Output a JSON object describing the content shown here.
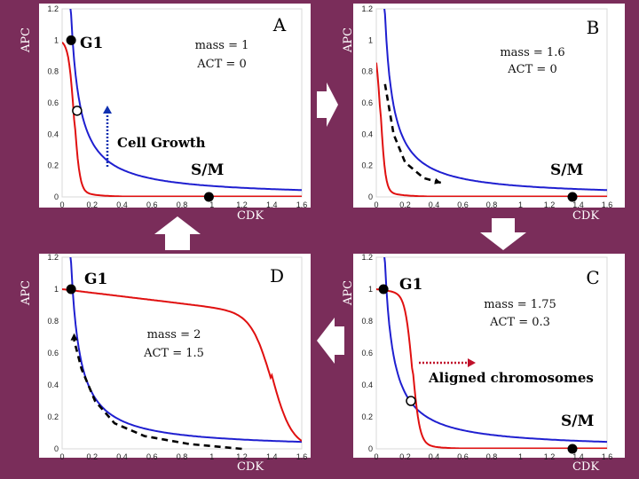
{
  "colors": {
    "background": "#7a2d5a",
    "panel_bg": "#ffffff",
    "blue_curve": "#1f1fd0",
    "red_curve": "#e01010",
    "arrow_white": "#ffffff",
    "cell_growth_arrow": "#1030b0",
    "aligned_arrow": "#c0102a",
    "dashed_path": "#000000"
  },
  "axis_labels": {
    "y": "APC",
    "x": "CDK"
  },
  "arrows": {
    "cell_growth": "Cell Growth",
    "aligned": "Aligned chromosomes"
  },
  "chart_data": [
    {
      "id": "A",
      "type": "line",
      "title": "A",
      "xlabel": "CDK",
      "ylabel": "APC",
      "xlim": [
        0,
        1.6
      ],
      "ylim": [
        0,
        1.2
      ],
      "xticks": [
        "0",
        "0.2",
        "0.4",
        "0.6",
        "0.8",
        "1",
        "1.2",
        "1.4",
        "1.6"
      ],
      "yticks": [
        "0",
        "0.2",
        "0.4",
        "0.6",
        "0.8",
        "1",
        "1.2"
      ],
      "params": [
        "mass = 1",
        "ACT = 0"
      ],
      "states": {
        "G1": [
          0.06,
          1.0
        ],
        "S/M": [
          0.98,
          0.0
        ]
      },
      "unstable_point": [
        0.1,
        0.55
      ],
      "series": [
        {
          "name": "APC nullcline",
          "color": "blue",
          "shape": "hyperbola",
          "k": 0.07
        },
        {
          "name": "CDK nullcline",
          "color": "red",
          "shape": "sigmoid-step",
          "x_drop": 0.08
        }
      ]
    },
    {
      "id": "B",
      "type": "line",
      "title": "B",
      "xlabel": "CDK",
      "ylabel": "APC",
      "xlim": [
        0,
        1.6
      ],
      "ylim": [
        0,
        1.2
      ],
      "xticks": [
        "0",
        "0.2",
        "0.4",
        "0.6",
        "0.8",
        "1",
        "1.2",
        "1.4",
        "1.6"
      ],
      "yticks": [
        "0",
        "0.2",
        "0.4",
        "0.6",
        "0.8",
        "1",
        "1.2"
      ],
      "params": [
        "mass = 1.6",
        "ACT = 0"
      ],
      "states": {
        "S/M": [
          1.36,
          0.0
        ]
      },
      "dashed_path": [
        [
          0.06,
          0.72
        ],
        [
          0.12,
          0.4
        ],
        [
          0.2,
          0.22
        ],
        [
          0.33,
          0.12
        ],
        [
          0.45,
          0.09
        ]
      ],
      "series": [
        {
          "name": "APC nullcline",
          "color": "blue",
          "shape": "hyperbola",
          "k": 0.07
        },
        {
          "name": "CDK nullcline",
          "color": "red",
          "shape": "sigmoid-step",
          "x_drop": 0.03
        }
      ]
    },
    {
      "id": "C",
      "type": "line",
      "title": "C",
      "xlabel": "CDK",
      "ylabel": "APC",
      "xlim": [
        0,
        1.6
      ],
      "ylim": [
        0,
        1.2
      ],
      "xticks": [
        "0",
        "0.2",
        "0.4",
        "0.6",
        "0.8",
        "1",
        "1.2",
        "1.4",
        "1.6"
      ],
      "yticks": [
        "0",
        "0.2",
        "0.4",
        "0.6",
        "0.8",
        "1",
        "1.2"
      ],
      "params": [
        "mass = 1.75",
        "ACT = 0.3"
      ],
      "states": {
        "G1": [
          0.05,
          1.0
        ],
        "S/M": [
          1.36,
          0.0
        ]
      },
      "unstable_point": [
        0.24,
        0.3
      ],
      "series": [
        {
          "name": "APC nullcline",
          "color": "blue",
          "shape": "hyperbola",
          "k": 0.07
        },
        {
          "name": "CDK nullcline",
          "color": "red",
          "shape": "sigmoid-step",
          "x_drop": 0.25
        }
      ]
    },
    {
      "id": "D",
      "type": "line",
      "title": "D",
      "xlabel": "CDK",
      "ylabel": "APC",
      "xlim": [
        0,
        1.6
      ],
      "ylim": [
        0,
        1.2
      ],
      "xticks": [
        "0",
        "0.2",
        "0.4",
        "0.6",
        "0.8",
        "1",
        "1.2",
        "1.4",
        "1.6"
      ],
      "yticks": [
        "0",
        "0.2",
        "0.4",
        "0.6",
        "0.8",
        "1",
        "1.2"
      ],
      "params": [
        "mass = 2",
        "ACT = 1.5"
      ],
      "states": {
        "G1": [
          0.06,
          1.0
        ]
      },
      "dashed_path": [
        [
          1.2,
          0.0
        ],
        [
          0.85,
          0.03
        ],
        [
          0.55,
          0.08
        ],
        [
          0.35,
          0.16
        ],
        [
          0.22,
          0.3
        ],
        [
          0.13,
          0.5
        ],
        [
          0.08,
          0.68
        ]
      ],
      "series": [
        {
          "name": "APC nullcline",
          "color": "blue",
          "shape": "hyperbola",
          "k": 0.07
        },
        {
          "name": "CDK nullcline",
          "color": "red",
          "shape": "sigmoid-step",
          "x_drop": 1.4
        }
      ]
    }
  ]
}
